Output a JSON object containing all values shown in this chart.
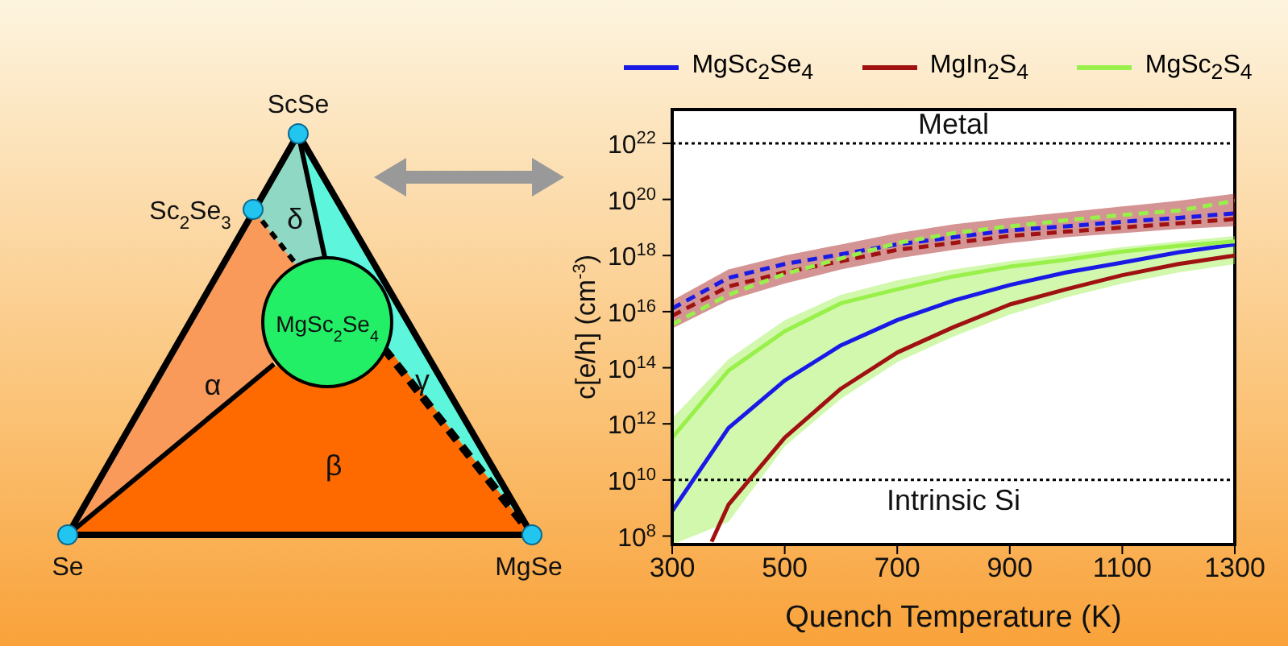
{
  "chart_data": [
    {
      "type": "other",
      "annotations": [
        "ScSe",
        "Sc$_{2}$Se$_{3}$",
        "δ",
        "α",
        "MgSc$_{2}$Se$_{4}$",
        "γ",
        "β",
        "Se",
        "MgSe"
      ]
    },
    {
      "type": "line",
      "xlabel": "Quench Temperature (K)",
      "ylabel": "c[e/h] (cm$^{-3}$)",
      "x": [
        300,
        400,
        500,
        600,
        700,
        800,
        900,
        1000,
        1100,
        1200,
        1300
      ],
      "xlim": [
        300,
        1300
      ],
      "xticks": [
        300,
        500,
        700,
        900,
        1100,
        1300
      ],
      "ylim": [
        50000000.0,
        1.6e+23
      ],
      "log": true,
      "yticks": [
        {
          "value": 100000000.0,
          "label": "10$^{8}$"
        },
        {
          "value": 10000000000.0,
          "label": "10$^{10}$"
        },
        {
          "value": 1000000000000.0,
          "label": "10$^{12}$"
        },
        {
          "value": 100000000000000.0,
          "label": "10$^{14}$"
        },
        {
          "value": 1e+16,
          "label": "10$^{16}$"
        },
        {
          "value": 1e+18,
          "label": "10$^{18}$"
        },
        {
          "value": 1e+20,
          "label": "10$^{20}$"
        },
        {
          "value": 1e+22,
          "label": "10$^{22}$"
        }
      ],
      "legend": "top",
      "marker": "none",
      "ref_lines": [
        {
          "axis": "y",
          "value": 1e+22,
          "label": "Metal",
          "line_style": "dotted",
          "color": "#000000"
        },
        {
          "axis": "y",
          "value": 10000000000.0,
          "label": "Intrinsic Si",
          "line_style": "dotted",
          "color": "#000000"
        }
      ],
      "series": [
        {
          "name": "MgSc$_{2}$Se$_{4}$",
          "color": "#1a1ae6",
          "line_style": "solid",
          "values": [
            790000000.0,
            710000000000.0,
            35000000000000.0,
            630000000000000.0,
            5000000000000000.0,
            2.5e+16,
            8.9e+16,
            2.5e+17,
            5.6e+17,
            1.3e+18,
            2.5e+18
          ]
        },
        {
          "name": "MgIn$_{2}$S$_{4}$",
          "color": "#a01212",
          "line_style": "solid",
          "x": [
            370,
            400,
            500,
            600,
            700,
            800,
            900,
            1000,
            1100,
            1200,
            1300
          ],
          "values": [
            63000000.0,
            1300000000.0,
            320000000000.0,
            18000000000000.0,
            350000000000000.0,
            2800000000000000.0,
            1.8e+16,
            6.3e+16,
            2e+17,
            5e+17,
            1e+18
          ]
        },
        {
          "name": "MgSc$_{2}$S$_{4}$",
          "color": "#99f04a",
          "line_style": "solid",
          "values": [
            320000000000.0,
            79000000000000.0,
            2000000000000000.0,
            2e+16,
            6.3e+16,
            1.8e+17,
            4e+17,
            7.1e+17,
            1.4e+18,
            2.2e+18,
            3.2e+18
          ],
          "lower": [
            50000000.0,
            320000000.0,
            160000000000.0,
            7900000000000.0,
            160000000000000.0,
            1300000000000000.0,
            7900000000000000.0,
            3.2e+16,
            1e+17,
            2.5e+17,
            5e+17
          ],
          "upper": [
            1600000000000.0,
            200000000000000.0,
            5000000000000000.0,
            4e+16,
            1.3e+17,
            3.2e+17,
            6.3e+17,
            1.1e+18,
            2e+18,
            3.2e+18,
            5e+18
          ]
        },
        {
          "color": "#1a1ae6",
          "line_style": "dashed",
          "values": [
            1.3e+16,
            1.6e+17,
            5e+17,
            1.1e+18,
            2.5e+18,
            4.5e+18,
            7.9e+18,
            1.1e+19,
            1.6e+19,
            2.2e+19,
            3.2e+19
          ]
        },
        {
          "color": "#a01212",
          "line_style": "dashed",
          "values": [
            7100000000000000.0,
            7.9e+16,
            2.5e+17,
            6.3e+17,
            1.6e+18,
            2.8e+18,
            5e+18,
            7.1e+18,
            1e+19,
            1.4e+19,
            2e+19
          ],
          "lower": [
            2500000000000000.0,
            2.5e+16,
            1e+17,
            3.2e+17,
            7.9e+17,
            1.6e+18,
            2.8e+18,
            4.5e+18,
            6.3e+18,
            8.9e+18,
            1.1e+19
          ],
          "upper": [
            2.5e+16,
            3.2e+17,
            1e+18,
            2.5e+18,
            6.3e+18,
            1.3e+19,
            2.2e+19,
            3.5e+19,
            5.6e+19,
            8.9e+19,
            1.6e+20
          ]
        },
        {
          "color": "#99f04a",
          "line_style": "dashed",
          "values": [
            3500000000000000.0,
            4e+16,
            2.2e+17,
            7.9e+17,
            2.8e+18,
            6.3e+18,
            1.1e+19,
            1.8e+19,
            2.8e+19,
            4e+19,
            8.9e+19
          ]
        }
      ]
    }
  ]
}
